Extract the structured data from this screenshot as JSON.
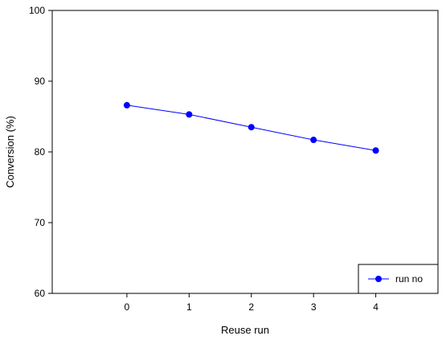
{
  "chart_data": {
    "type": "line",
    "title": "",
    "xlabel": "Reuse run",
    "ylabel": "Conversion (%)",
    "xlim": [
      -1.2,
      5.0
    ],
    "ylim": [
      60,
      100
    ],
    "x_ticks": [
      "0",
      "1",
      "2",
      "3",
      "4"
    ],
    "y_ticks": [
      "60",
      "70",
      "80",
      "90",
      "100"
    ],
    "grid": false,
    "legend_position": "bottom-right",
    "series": [
      {
        "name": "run no",
        "color": "#0000ff",
        "marker": "circle",
        "x": [
          0,
          1,
          2,
          3,
          4
        ],
        "y": [
          86.6,
          85.3,
          83.5,
          81.7,
          80.2
        ]
      }
    ]
  }
}
